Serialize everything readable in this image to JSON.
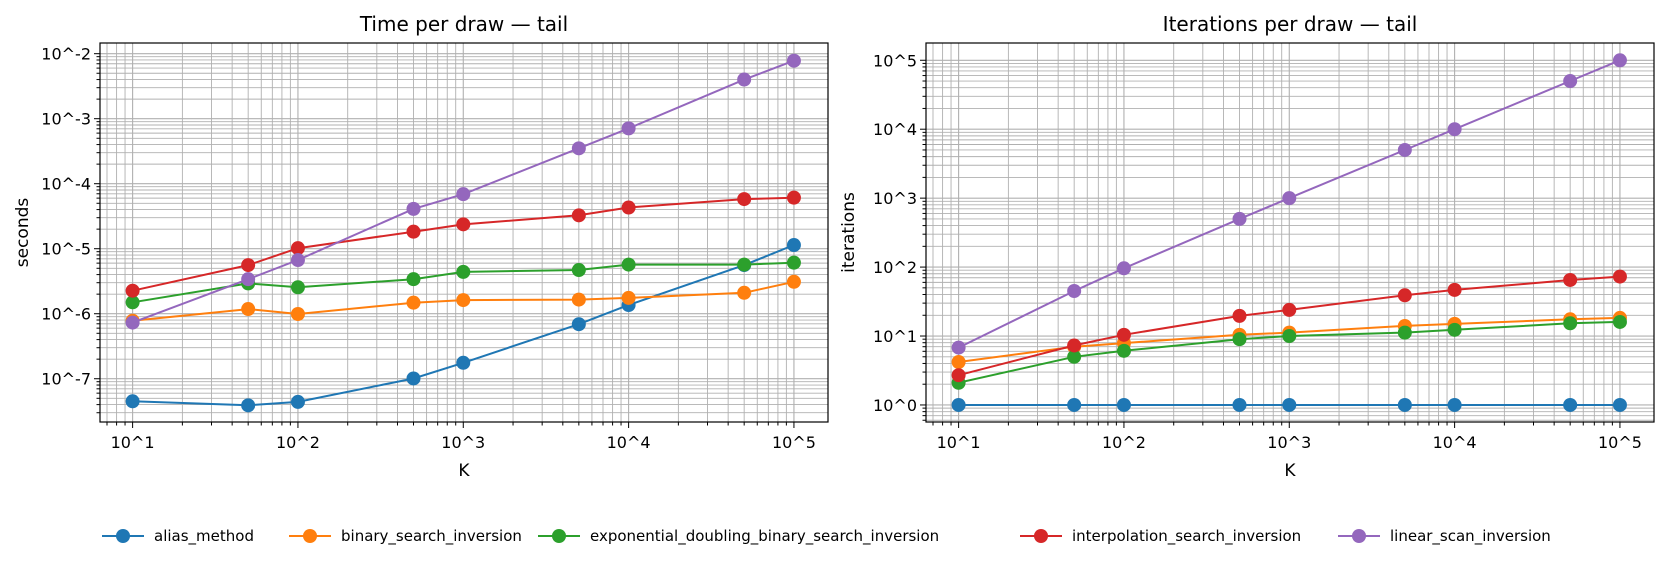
{
  "colors": {
    "alias_method": "#1f77b4",
    "binary_search_inversion": "#ff7f0e",
    "exponential_doubling_binary_search_inversion": "#2ca02c",
    "interpolation_search_inversion": "#d62728",
    "linear_scan_inversion": "#9467bd",
    "grid": "#b0b0b0"
  },
  "legend": {
    "placement": "bottom-center",
    "entries": [
      "alias_method",
      "binary_search_inversion",
      "exponential_doubling_binary_search_inversion",
      "interpolation_search_inversion",
      "linear_scan_inversion"
    ]
  },
  "chart_data": [
    {
      "type": "line",
      "title": "Time per draw — tail",
      "xlabel": "K",
      "ylabel": "seconds",
      "xscale": "log",
      "yscale": "log",
      "xlim": [
        6.35,
        160700
      ],
      "ylim": [
        2.16e-08,
        0.0146
      ],
      "xticks": [
        {
          "value": 10,
          "label": "10^1"
        },
        {
          "value": 100,
          "label": "10^2"
        },
        {
          "value": 1000,
          "label": "10^3"
        },
        {
          "value": 10000,
          "label": "10^4"
        },
        {
          "value": 100000,
          "label": "10^5"
        }
      ],
      "yticks": [
        {
          "value": 1e-07,
          "label": "10^-7"
        },
        {
          "value": 1e-06,
          "label": "10^-6"
        },
        {
          "value": 1e-05,
          "label": "10^-5"
        },
        {
          "value": 0.0001,
          "label": "10^-4"
        },
        {
          "value": 0.001,
          "label": "10^-3"
        },
        {
          "value": 0.01,
          "label": "10^-2"
        }
      ],
      "grid": "major+minor",
      "x": [
        10,
        50,
        100,
        500,
        1000,
        5000,
        10000,
        50000,
        100000
      ],
      "series": [
        {
          "name": "alias_method",
          "values": [
            4.5e-08,
            3.9e-08,
            4.4e-08,
            1.01e-07,
            1.76e-07,
            6.9e-07,
            1.36e-06,
            5.6e-06,
            1.14e-05
          ]
        },
        {
          "name": "binary_search_inversion",
          "values": [
            7.8e-07,
            1.18e-06,
            9.9e-07,
            1.48e-06,
            1.62e-06,
            1.65e-06,
            1.75e-06,
            2.1e-06,
            3.1e-06
          ]
        },
        {
          "name": "exponential_doubling_binary_search_inversion",
          "values": [
            1.5e-06,
            2.93e-06,
            2.55e-06,
            3.4e-06,
            4.4e-06,
            4.7e-06,
            5.7e-06,
            5.7e-06,
            6.1e-06
          ]
        },
        {
          "name": "interpolation_search_inversion",
          "values": [
            2.26e-06,
            5.6e-06,
            1.02e-05,
            1.83e-05,
            2.37e-05,
            3.26e-05,
            4.3e-05,
            5.8e-05,
            6.1e-05
          ]
        },
        {
          "name": "linear_scan_inversion",
          "values": [
            7.3e-07,
            3.4e-06,
            6.7e-06,
            4.1e-05,
            6.9e-05,
            0.00035,
            0.00071,
            0.004,
            0.0078
          ]
        }
      ]
    },
    {
      "type": "line",
      "title": "Iterations per draw — tail",
      "xlabel": "K",
      "ylabel": "iterations",
      "xscale": "log",
      "yscale": "log",
      "xlim": [
        6.35,
        160700
      ],
      "ylim": [
        0.566,
        178000
      ],
      "xticks": [
        {
          "value": 10,
          "label": "10^1"
        },
        {
          "value": 100,
          "label": "10^2"
        },
        {
          "value": 1000,
          "label": "10^3"
        },
        {
          "value": 10000,
          "label": "10^4"
        },
        {
          "value": 100000,
          "label": "10^5"
        }
      ],
      "yticks": [
        {
          "value": 1,
          "label": "10^0"
        },
        {
          "value": 10,
          "label": "10^1"
        },
        {
          "value": 100,
          "label": "10^2"
        },
        {
          "value": 1000,
          "label": "10^3"
        },
        {
          "value": 10000,
          "label": "10^4"
        },
        {
          "value": 100000,
          "label": "10^5"
        }
      ],
      "grid": "major+minor",
      "x": [
        10,
        50,
        100,
        500,
        1000,
        5000,
        10000,
        50000,
        100000
      ],
      "series": [
        {
          "name": "alias_method",
          "values": [
            1,
            1,
            1,
            1,
            1,
            1,
            1,
            1,
            1
          ]
        },
        {
          "name": "binary_search_inversion",
          "values": [
            4.2,
            7.0,
            7.9,
            10.4,
            11.2,
            14,
            15,
            17.5,
            18.3
          ]
        },
        {
          "name": "exponential_doubling_binary_search_inversion",
          "values": [
            2.1,
            5.0,
            6.1,
            9.0,
            10,
            11.2,
            12.3,
            15.3,
            16
          ]
        },
        {
          "name": "interpolation_search_inversion",
          "values": [
            2.7,
            7.3,
            10.4,
            19.6,
            23.9,
            39,
            46.7,
            65,
            72.8
          ]
        },
        {
          "name": "linear_scan_inversion",
          "values": [
            6.8,
            45,
            96,
            500,
            1000,
            5000,
            10000,
            50000,
            100000
          ]
        }
      ]
    }
  ]
}
